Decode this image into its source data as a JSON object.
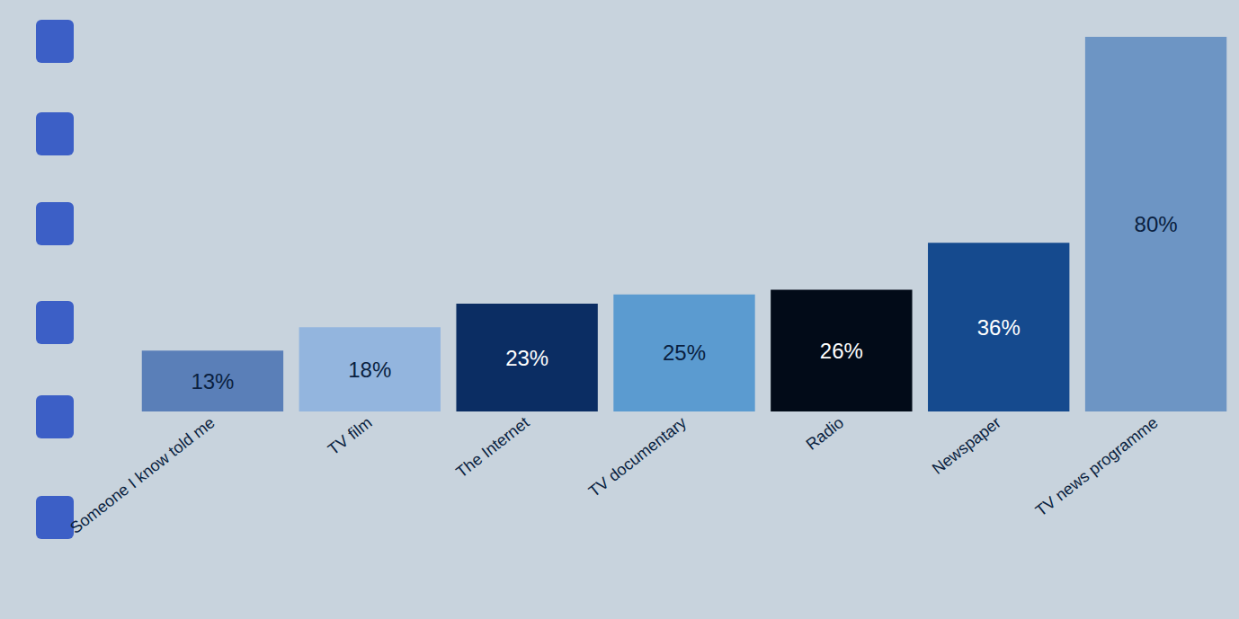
{
  "chart_data": {
    "type": "bar",
    "categories": [
      "Someone I know told me",
      "TV film",
      "The Internet",
      "TV documentary",
      "Radio",
      "Newspaper",
      "TV news programme"
    ],
    "values": [
      13,
      18,
      23,
      25,
      26,
      36,
      80
    ],
    "value_labels": [
      "13%",
      "18%",
      "23%",
      "25%",
      "26%",
      "36%",
      "80%"
    ],
    "colors": [
      "#5a7fb8",
      "#93b5de",
      "#0b2d63",
      "#5b9bd0",
      "#020b18",
      "#154a8e",
      "#6d95c4"
    ],
    "ylim": [
      0,
      80
    ],
    "grid": false,
    "data_labels": true,
    "tick_labels": "x"
  }
}
